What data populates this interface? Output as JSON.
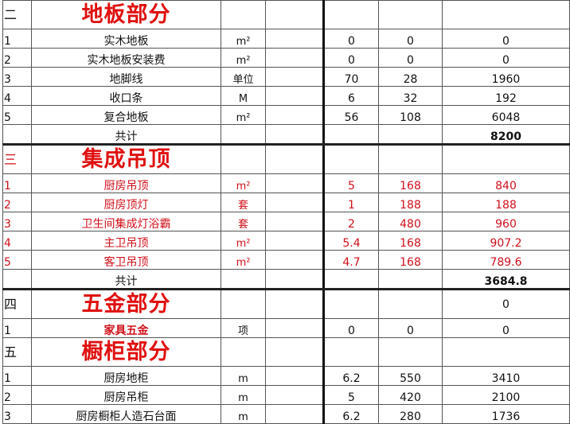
{
  "sections": [
    {
      "index": "二",
      "title": "地板部分",
      "amount": "",
      "title_color": "#e01010",
      "items": [
        {
          "index": "1",
          "name": "实木地板",
          "unit": "m²",
          "qty": "0",
          "price": "0",
          "amount": "0"
        },
        {
          "index": "2",
          "name": "实木地板安装费",
          "unit": "m²",
          "qty": "0",
          "price": "0",
          "amount": "0"
        },
        {
          "index": "3",
          "name": "地脚线",
          "unit": "单位",
          "qty": "70",
          "price": "28",
          "amount": "1960"
        },
        {
          "index": "4",
          "name": "收口条",
          "unit": "M",
          "qty": "6",
          "price": "32",
          "amount": "192"
        },
        {
          "index": "5",
          "name": "复合地板",
          "unit": "m²",
          "qty": "56",
          "price": "108",
          "amount": "6048"
        }
      ],
      "total_label": "共计",
      "total": "8200"
    },
    {
      "index": "三",
      "title": "集成吊顶",
      "amount": "",
      "text_color": "#d0101a",
      "items": [
        {
          "index": "1",
          "name": "厨房吊顶",
          "unit": "m²",
          "qty": "5",
          "price": "168",
          "amount": "840"
        },
        {
          "index": "2",
          "name": "厨房顶灯",
          "unit": "套",
          "qty": "1",
          "price": "188",
          "amount": "188"
        },
        {
          "index": "3",
          "name": "卫生间集成灯浴霸",
          "unit": "套",
          "qty": "2",
          "price": "480",
          "amount": "960"
        },
        {
          "index": "4",
          "name": "主卫吊顶",
          "unit": "m²",
          "qty": "5.4",
          "price": "168",
          "amount": "907.2"
        },
        {
          "index": "5",
          "name": "客卫吊顶",
          "unit": "m²",
          "qty": "4.7",
          "price": "168",
          "amount": "789.6"
        }
      ],
      "total_label": "共计",
      "total": "3684.8"
    },
    {
      "index": "四",
      "title": "五金部分",
      "amount": "0",
      "items": [
        {
          "index": "1",
          "name": "家具五金",
          "unit": "项",
          "qty": "0",
          "price": "0",
          "amount": "0"
        }
      ]
    },
    {
      "index": "五",
      "title": "橱柜部分",
      "amount": "",
      "items": [
        {
          "index": "1",
          "name": "厨房地柜",
          "unit": "m",
          "qty": "6.2",
          "price": "550",
          "amount": "3410"
        },
        {
          "index": "2",
          "name": "厨房吊柜",
          "unit": "m",
          "qty": "5",
          "price": "420",
          "amount": "2100"
        },
        {
          "index": "3",
          "name": "厨房橱柜人造石台面",
          "unit": "m",
          "qty": "6.2",
          "price": "280",
          "amount": "1736"
        }
      ]
    }
  ]
}
